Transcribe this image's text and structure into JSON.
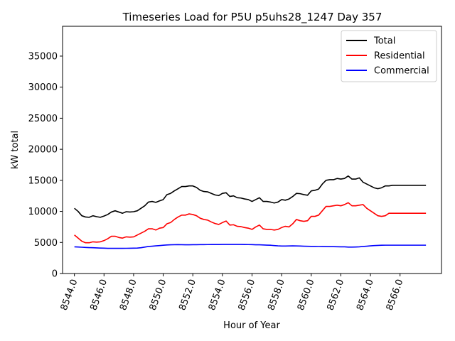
{
  "chart_data": {
    "type": "line",
    "title": "Timeseries Load for P5U p5uhs28_1247  Day 357",
    "xlabel": "Hour of Year",
    "ylabel": "kW total",
    "xlim": [
      8543.2,
      8568.8
    ],
    "ylim": [
      0,
      39800
    ],
    "xticks": [
      8544,
      8546,
      8548,
      8550,
      8552,
      8554,
      8556,
      8558,
      8560,
      8562,
      8564,
      8566
    ],
    "xtick_labels": [
      "8544.0",
      "8546.0",
      "8548.0",
      "8550.0",
      "8552.0",
      "8554.0",
      "8556.0",
      "8558.0",
      "8560.0",
      "8562.0",
      "8564.0",
      "8566.0"
    ],
    "yticks": [
      0,
      5000,
      10000,
      15000,
      20000,
      25000,
      30000,
      35000
    ],
    "ytick_labels": [
      "0",
      "5000",
      "10000",
      "15000",
      "20000",
      "25000",
      "30000",
      "35000"
    ],
    "x": [
      8544.0,
      8544.25,
      8544.5,
      8544.75,
      8545.0,
      8545.25,
      8545.5,
      8545.75,
      8546.0,
      8546.25,
      8546.5,
      8546.75,
      8547.0,
      8547.25,
      8547.5,
      8547.75,
      8548.0,
      8548.25,
      8548.5,
      8548.75,
      8549.0,
      8549.25,
      8549.5,
      8549.75,
      8550.0,
      8550.25,
      8550.5,
      8550.75,
      8551.0,
      8551.25,
      8551.5,
      8551.75,
      8552.0,
      8552.25,
      8552.5,
      8552.75,
      8553.0,
      8553.25,
      8553.5,
      8553.75,
      8554.0,
      8554.25,
      8554.5,
      8554.75,
      8555.0,
      8555.25,
      8555.5,
      8555.75,
      8556.0,
      8556.25,
      8556.5,
      8556.75,
      8557.0,
      8557.25,
      8557.5,
      8557.75,
      8558.0,
      8558.25,
      8558.5,
      8558.75,
      8559.0,
      8559.25,
      8559.5,
      8559.75,
      8560.0,
      8560.25,
      8560.5,
      8560.75,
      8561.0,
      8561.25,
      8561.5,
      8561.75,
      8562.0,
      8562.25,
      8562.5,
      8562.75,
      8563.0,
      8563.25,
      8563.5,
      8563.75,
      8564.0,
      8564.25,
      8564.5,
      8564.75,
      8565.0,
      8565.25,
      8565.5,
      8565.75,
      8566.0,
      8566.25,
      8566.5,
      8566.75,
      8567.0,
      8567.25,
      8567.5,
      8567.75
    ],
    "series": [
      {
        "name": "Total",
        "color": "#000000",
        "values": [
          10500,
          10000,
          9300,
          9100,
          9050,
          9300,
          9150,
          9050,
          9250,
          9500,
          9900,
          10100,
          9900,
          9700,
          9950,
          9900,
          9950,
          10100,
          10500,
          10900,
          11500,
          11600,
          11450,
          11700,
          11900,
          12700,
          12900,
          13300,
          13650,
          14000,
          14000,
          14100,
          14100,
          13850,
          13400,
          13200,
          13150,
          12900,
          12650,
          12550,
          12900,
          13000,
          12400,
          12500,
          12200,
          12150,
          12000,
          11900,
          11600,
          11900,
          12200,
          11600,
          11600,
          11500,
          11350,
          11500,
          11900,
          11800,
          12000,
          12400,
          12900,
          12850,
          12700,
          12600,
          13300,
          13400,
          13600,
          14400,
          15000,
          15100,
          15100,
          15300,
          15200,
          15300,
          15700,
          15200,
          15200,
          15400,
          14700,
          14400,
          14100,
          13800,
          13650,
          13800,
          14100,
          14100,
          14200,
          14200,
          14200,
          14200,
          14200,
          14200,
          14200,
          14200,
          14200,
          14200
        ]
      },
      {
        "name": "Residential",
        "color": "#ff0000",
        "values": [
          6200,
          5700,
          5200,
          4950,
          4950,
          5100,
          5050,
          5100,
          5300,
          5600,
          6000,
          6000,
          5800,
          5700,
          5900,
          5850,
          5900,
          6200,
          6500,
          6800,
          7200,
          7200,
          7000,
          7300,
          7400,
          8000,
          8200,
          8700,
          9100,
          9400,
          9400,
          9600,
          9500,
          9300,
          8900,
          8700,
          8600,
          8300,
          8050,
          7900,
          8200,
          8450,
          7800,
          7850,
          7600,
          7550,
          7400,
          7300,
          7100,
          7500,
          7800,
          7200,
          7100,
          7100,
          7000,
          7100,
          7400,
          7600,
          7500,
          8000,
          8700,
          8500,
          8400,
          8500,
          9200,
          9200,
          9400,
          10100,
          10800,
          10800,
          10900,
          11000,
          10900,
          11100,
          11400,
          10900,
          10900,
          11000,
          11100,
          10500,
          10100,
          9700,
          9300,
          9200,
          9300,
          9700,
          9700,
          9700,
          9700,
          9700,
          9700,
          9700,
          9700,
          9700,
          9700,
          9700
        ]
      },
      {
        "name": "Commercial",
        "color": "#0000ff",
        "values": [
          4300,
          4270,
          4230,
          4200,
          4170,
          4150,
          4120,
          4100,
          4080,
          4050,
          4050,
          4050,
          4050,
          4050,
          4060,
          4070,
          4080,
          4100,
          4150,
          4250,
          4350,
          4400,
          4450,
          4500,
          4550,
          4600,
          4620,
          4640,
          4650,
          4640,
          4620,
          4630,
          4640,
          4640,
          4650,
          4650,
          4660,
          4670,
          4670,
          4670,
          4680,
          4680,
          4680,
          4680,
          4680,
          4680,
          4670,
          4660,
          4650,
          4630,
          4620,
          4600,
          4570,
          4550,
          4500,
          4450,
          4430,
          4430,
          4440,
          4450,
          4440,
          4420,
          4400,
          4380,
          4370,
          4370,
          4360,
          4350,
          4340,
          4330,
          4320,
          4310,
          4300,
          4300,
          4250,
          4250,
          4270,
          4300,
          4350,
          4400,
          4450,
          4500,
          4520,
          4550,
          4560,
          4560,
          4560,
          4560,
          4560,
          4560,
          4560,
          4560,
          4560,
          4560,
          4560,
          4560
        ]
      }
    ],
    "legend": {
      "location": "top-right",
      "entries": [
        "Total",
        "Residential",
        "Commercial"
      ]
    }
  }
}
